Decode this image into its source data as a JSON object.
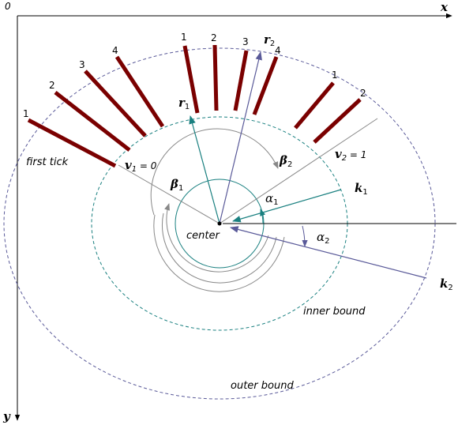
{
  "axes": {
    "origin": "0",
    "x": "x",
    "y": "y"
  },
  "labels": {
    "first_tick": "first tick",
    "center": "center",
    "inner_bound": "inner bound",
    "outer_bound": "outer bound"
  },
  "symbols": {
    "v1": {
      "base": "v",
      "sub": "1",
      "rest": " = 0"
    },
    "v2": {
      "base": "v",
      "sub": "2",
      "rest": " = 1"
    },
    "r1": {
      "base": "r",
      "sub": "1"
    },
    "r2": {
      "base": "r",
      "sub": "2"
    },
    "k1": {
      "base": "k",
      "sub": "1"
    },
    "k2": {
      "base": "k",
      "sub": "2"
    },
    "alpha1": {
      "base": "α",
      "sub": "1"
    },
    "alpha2": {
      "base": "α",
      "sub": "2"
    },
    "beta1": {
      "base": "β",
      "sub": "1"
    },
    "beta2": {
      "base": "β",
      "sub": "2"
    }
  },
  "scale1_ticks": [
    "1",
    "2",
    "3",
    "4",
    "1",
    "2",
    "3",
    "4"
  ],
  "scale2_ticks": [
    "1",
    "2"
  ],
  "colors": {
    "tick": "#7a0000",
    "teal": "#1a8080",
    "purple": "#5a5a99",
    "gray": "#888888",
    "axis": "#000000"
  }
}
